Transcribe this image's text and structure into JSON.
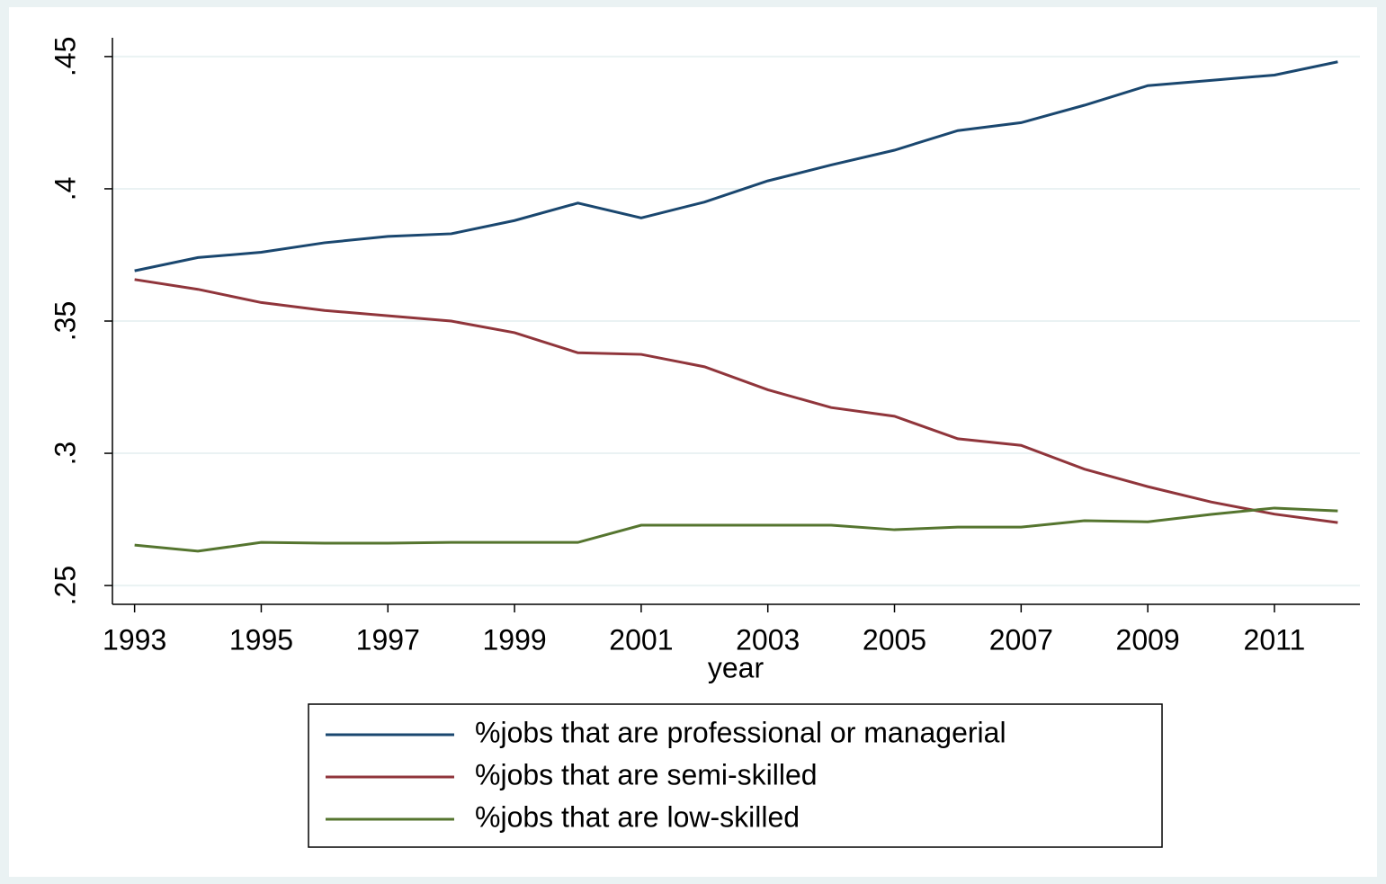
{
  "chart_data": {
    "type": "line",
    "x_label": "year",
    "x": [
      1993,
      1994,
      1995,
      1996,
      1997,
      1998,
      1999,
      2000,
      2001,
      2002,
      2003,
      2004,
      2005,
      2006,
      2007,
      2008,
      2009,
      2010,
      2011,
      2012
    ],
    "series": [
      {
        "name": "%jobs that are professional or managerial",
        "color": "#1a476f",
        "values": [
          0.369,
          0.374,
          0.376,
          0.3796,
          0.382,
          0.383,
          0.388,
          0.3946,
          0.389,
          0.395,
          0.403,
          0.409,
          0.4146,
          0.422,
          0.425,
          0.4316,
          0.439,
          0.441,
          0.443,
          0.448
        ]
      },
      {
        "name": "%jobs that are semi-skilled",
        "color": "#90353b",
        "values": [
          0.3657,
          0.362,
          0.357,
          0.354,
          0.352,
          0.35,
          0.3456,
          0.338,
          0.3374,
          0.3327,
          0.324,
          0.3173,
          0.314,
          0.3055,
          0.303,
          0.294,
          0.2874,
          0.2816,
          0.277,
          0.2738
        ]
      },
      {
        "name": "%jobs that are low-skilled",
        "color": "#55752f",
        "values": [
          0.2653,
          0.263,
          0.2663,
          0.266,
          0.266,
          0.2663,
          0.2663,
          0.2663,
          0.2728,
          0.2728,
          0.2728,
          0.2728,
          0.2711,
          0.2721,
          0.2721,
          0.2745,
          0.2741,
          0.2769,
          0.2793,
          0.2782
        ]
      }
    ],
    "xlim": [
      1992.65,
      2012.35
    ],
    "xticks": [
      1993,
      1995,
      1997,
      1999,
      2001,
      2003,
      2005,
      2007,
      2009,
      2011
    ],
    "ylim": [
      0.2429,
      0.4571
    ],
    "yticks": [
      {
        "value": 0.25,
        "label": ".25"
      },
      {
        "value": 0.3,
        "label": ".3"
      },
      {
        "value": 0.35,
        "label": ".35"
      },
      {
        "value": 0.4,
        "label": ".4"
      },
      {
        "value": 0.45,
        "label": ".45"
      }
    ],
    "grid": true
  }
}
